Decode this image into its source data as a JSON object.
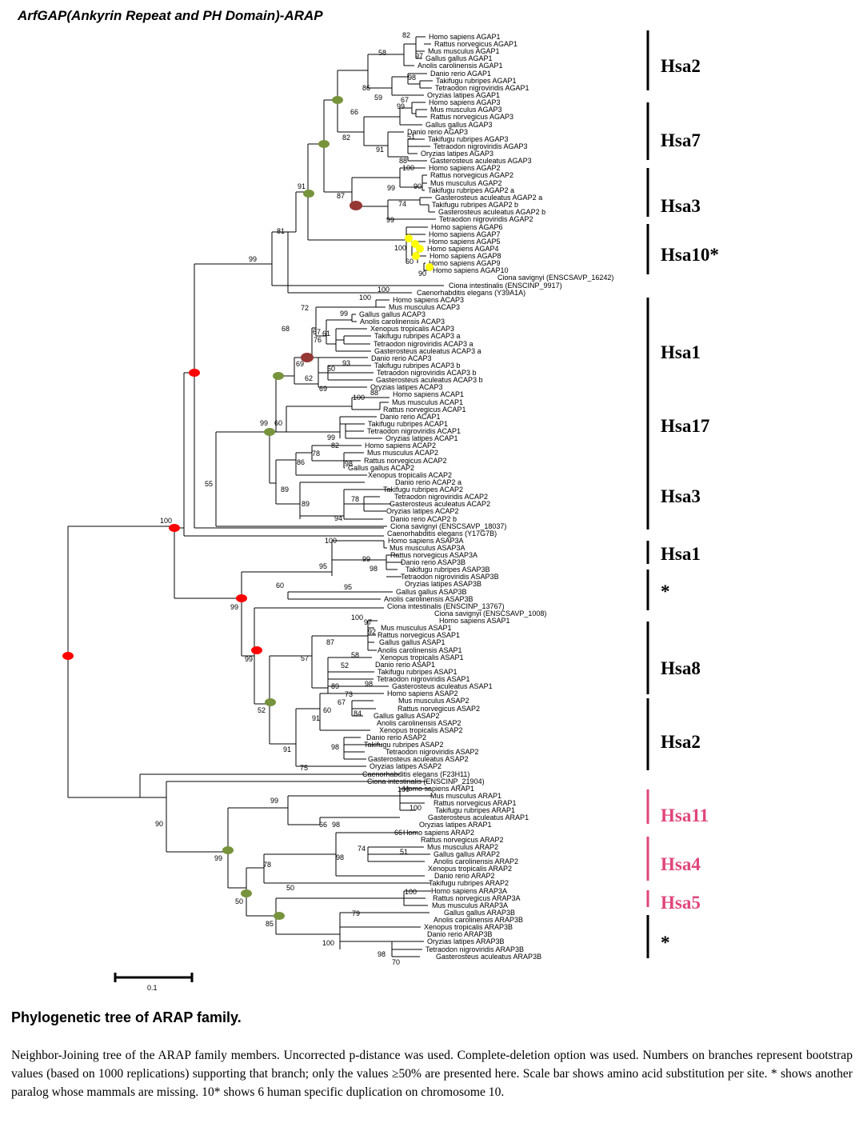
{
  "header": {
    "title": "ArfGAP(Ankyrin Repeat and PH Domain)-ARAP"
  },
  "leaves": [
    "Homo sapiens AGAP1",
    "Rattus norvegicus AGAP1",
    "Mus musculus AGAP1",
    "Gallus gallus AGAP1",
    "Anolis carolinensis AGAP1",
    "Danio rerio AGAP1",
    "Takifugu rubripes AGAP1",
    "Tetraodon nigroviridis AGAP1",
    "Oryzias latipes AGAP1",
    "Homo sapiens AGAP3",
    "Mus musculus AGAP3",
    "Rattus norvegicus AGAP3",
    "Gallus gallus AGAP3",
    "Danio rerio AGAP3",
    "Takifugu rubripes AGAP3",
    "Tetraodon nigroviridis AGAP3",
    "Oryzias latipes AGAP3",
    "Gasterosteus aculeatus AGAP3",
    "Homo sapiens AGAP2",
    "Rattus norvegicus AGAP2",
    "Mus musculus AGAP2",
    "Takifugu rubripes AGAP2 a",
    "Gasterosteus aculeatus AGAP2 a",
    "Takifugu rubripes AGAP2 b",
    "Gasterosteus aculeatus AGAP2 b",
    "Tetraodon nigroviridis AGAP2",
    "Homo sapiens AGAP6",
    "Homo sapiens AGAP7",
    "Homo sapiens AGAP5",
    "Homo sapiens AGAP4",
    "Homo sapiens AGAP8",
    "Homo sapiens AGAP9",
    "Homo sapiens AGAP10",
    "Ciona savignyi (ENSCSAVP_16242)",
    "Ciona intestinalis (ENSCINP_9917)",
    "Caenorhabditis elegans (Y39A1A)",
    "Homo sapiens ACAP3",
    "Mus musculus ACAP3",
    "Gallus gallus ACAP3",
    "Anolis carolinensis ACAP3",
    "Xenopus tropicalis ACAP3",
    "Takifugu rubripes ACAP3 a",
    "Tetraodon nigroviridis ACAP3 a",
    "Gasterosteus aculeatus ACAP3 a",
    "Danio rerio ACAP3",
    "Takifugu rubripes ACAP3 b",
    "Tetraodon nigroviridis ACAP3 b",
    "Gasterosteus aculeatus ACAP3 b",
    "Oryzias latipes ACAP3",
    "Homo sapiens ACAP1",
    "Mus musculus ACAP1",
    "Rattus norvegicus ACAP1",
    "Danio rerio ACAP1",
    "Takifugu rubripes ACAP1",
    "Tetraodon nigroviridis ACAP1",
    "Oryzias latipes ACAP1",
    "Homo sapiens ACAP2",
    "Mus musculus ACAP2",
    "Rattus norvegicus ACAP2",
    "Gallus gallus ACAP2",
    "Xenopus tropicalis ACAP2",
    "Danio rerio ACAP2 a",
    "Takifugu rubripes ACAP2",
    "Tetraodon nigroviridis ACAP2",
    "Gasterosteus aculeatus ACAP2",
    "Oryzias latipes ACAP2",
    "Danio rerio ACAP2 b",
    "Ciona savignyi (ENSCSAVP_18037)",
    "Caenorhabditis elegans (Y17G7B)",
    "Homo sapiens ASAP3A",
    "Mus musculus ASAP3A",
    "Rattus norvegicus ASAP3A",
    "Danio rerio ASAP3B",
    "Takifugu rubripes ASAP3B",
    "Tetraodon nigroviridis ASAP3B",
    "Oryzias latipes ASAP3B",
    "Gallus gallus ASAP3B",
    "Anolis carolinensis ASAP3B",
    "Ciona intestinalis (ENSCINP_13767)",
    "Ciona savignyi (ENSCSAVP_1008)",
    "Homo sapiens ASAP1",
    "Mus musculus ASAP1",
    "Rattus norvegicus ASAP1",
    "Gallus gallus ASAP1",
    "Anolis carolinensis ASAP1",
    "Xenopus tropicalis ASAP1",
    "Danio rerio ASAP1",
    "Takifugu rubripes ASAP1",
    "Tetraodon nigroviridis ASAP1",
    "Gasterosteus aculeatus ASAP1",
    "Homo sapiens ASAP2",
    "Mus musculus ASAP2",
    "Rattus norvegicus ASAP2",
    "Gallus gallus ASAP2",
    "Anolis carolinensis ASAP2",
    "Xenopus tropicalis ASAP2",
    "Danio rerio ASAP2",
    "Takifugu rubripes ASAP2",
    "Tetraodon nigroviridis ASAP2",
    "Gasterosteus aculeatus ASAP2",
    "Oryzias latipes ASAP2",
    "Caenorhabditis elegans (F23H11)",
    "Ciona intestinalis (ENSCINP_21904)",
    "Homo sapiens ARAP1",
    "Mus musculus ARAP1",
    "Rattus norvegicus ARAP1",
    "Takifugu rubripes ARAP1",
    "Gasterosteus aculeatus ARAP1",
    "Oryzias latipes ARAP1",
    "Homo sapiens ARAP2",
    "Rattus norvegicus ARAP2",
    "Mus musculus ARAP2",
    "Gallus gallus ARAP2",
    "Anolis carolinensis ARAP2",
    "Xenopus tropicalis ARAP2",
    "Danio rerio ARAP2",
    "Takifugu rubripes ARAP2",
    "Homo sapiens ARAP3A",
    "Rattus norvegicus ARAP3A",
    "Mus musculus ARAP3A",
    "Gallus gallus ARAP3B",
    "Anolis carolinensis ARAP3B",
    "Xenopus tropicalis ARAP3B",
    "Danio rerio ARAP3B",
    "Oryzias latipes ARAP3B",
    "Tetraodon nigroviridis ARAP3B",
    "Gasterosteus aculeatus ARAP3B"
  ],
  "bootstraps": [
    "82",
    "58",
    "97",
    "98",
    "86",
    "59",
    "66",
    "99",
    "67",
    "82",
    "51",
    "91",
    "88",
    "100",
    "91",
    "87",
    "99",
    "90",
    "74",
    "99",
    "100",
    "60",
    "90",
    "81",
    "99",
    "100",
    "100",
    "72",
    "99",
    "68",
    "67",
    "61",
    "76",
    "69",
    "60",
    "93",
    "62",
    "69",
    "100",
    "88",
    "99",
    "60",
    "99",
    "82",
    "78",
    "86",
    "98",
    "89",
    "78",
    "89",
    "94",
    "55",
    "100",
    "100",
    "99",
    "95",
    "98",
    "60",
    "95",
    "99",
    "100",
    "97",
    "92",
    "87",
    "58",
    "99",
    "57",
    "52",
    "89",
    "98",
    "73",
    "67",
    "60",
    "84",
    "91",
    "52",
    "98",
    "91",
    "75",
    "100",
    "100",
    "99",
    "66",
    "98",
    "66",
    "98",
    "74",
    "51",
    "99",
    "78",
    "50",
    "100",
    "50",
    "79",
    "85",
    "100",
    "98",
    "70",
    "90"
  ],
  "groups": [
    {
      "label": "Hsa2",
      "color": "#000000"
    },
    {
      "label": "Hsa7",
      "color": "#000000"
    },
    {
      "label": "Hsa3",
      "color": "#000000"
    },
    {
      "label": "Hsa10*",
      "color": "#000000"
    },
    {
      "label": "Hsa1",
      "color": "#000000"
    },
    {
      "label": "Hsa17",
      "color": "#000000"
    },
    {
      "label": "Hsa3",
      "color": "#000000"
    },
    {
      "label": "Hsa1",
      "color": "#000000"
    },
    {
      "label": "*",
      "color": "#000000"
    },
    {
      "label": "Hsa8",
      "color": "#000000"
    },
    {
      "label": "Hsa2",
      "color": "#000000"
    },
    {
      "label": "Hsa11",
      "color": "#e0457b"
    },
    {
      "label": "Hsa4",
      "color": "#e0457b"
    },
    {
      "label": "Hsa5",
      "color": "#e0457b"
    },
    {
      "label": "*",
      "color": "#000000"
    }
  ],
  "node_colors": {
    "red": "#ff0000",
    "green": "#77933c",
    "brown": "#953735",
    "yellow": "#ffff00"
  },
  "scale_bar": {
    "label": "0.1"
  },
  "figure": {
    "title": "Phylogenetic tree of  ARAP family.",
    "caption": "Neighbor-Joining tree of the ARAP family members. Uncorrected p-distance was used. Complete-deletion option was used. Numbers on branches represent bootstrap values (based on 1000 replications) supporting that branch; only the values ≥50% are presented here. Scale bar shows amino acid substitution per site. * shows another  paralog whose mammals are missing. 10* shows 6 human specific duplication on chromosome 10."
  }
}
